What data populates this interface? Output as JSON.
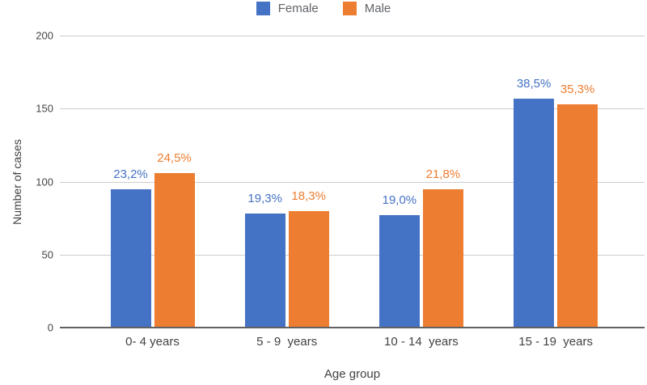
{
  "chart_data": {
    "type": "bar",
    "title": "",
    "categories": [
      "0- 4 years",
      "5 - 9  years",
      "10 - 14  years",
      "15 - 19  years"
    ],
    "series": [
      {
        "name": "Female",
        "color": "#4472C4",
        "values": [
          95,
          78,
          77,
          157
        ],
        "labels": [
          "23,2%",
          "19,3%",
          "19,0%",
          "38,5%"
        ]
      },
      {
        "name": "Male",
        "color": "#ED7D31",
        "values": [
          106,
          80,
          95,
          153
        ],
        "labels": [
          "24,5%",
          "18,3%",
          "21,8%",
          "35,3%"
        ]
      }
    ],
    "xlabel": "Age group",
    "ylabel": "Number of cases",
    "ylim": [
      0,
      200
    ],
    "yticks": [
      0,
      50,
      100,
      150,
      200
    ],
    "grid": true,
    "legend_position": "top-center",
    "gridline_color": "#cccccc",
    "axis_line_color": "#616161",
    "tick_text_color": "#444444"
  }
}
